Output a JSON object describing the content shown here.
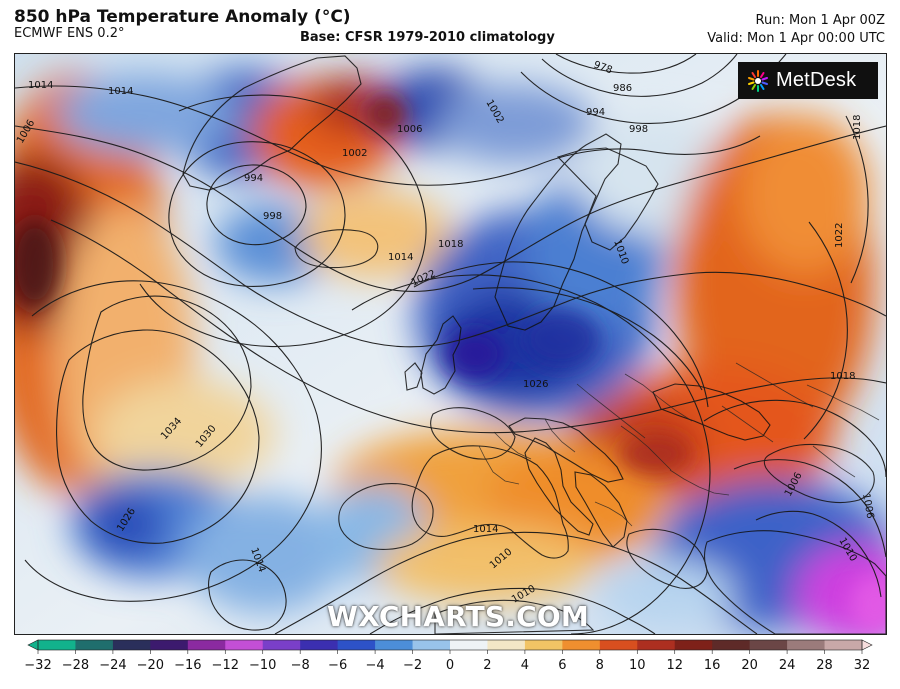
{
  "header": {
    "title": "850 hPa Temperature Anomaly (°C)",
    "model": "ECMWF ENS 0.2°",
    "base": "Base: CFSR 1979-2010 climatology",
    "run": "Run: Mon 1 Apr 00Z",
    "valid": "Valid: Mon 1 Apr 00:00 UTC"
  },
  "branding": {
    "logo_text": "MetDesk",
    "watermark": "WXCHARTS.COM"
  },
  "colorbar": {
    "ticks": [
      "−32",
      "−28",
      "−24",
      "−20",
      "−16",
      "−12",
      "−10",
      "−8",
      "−6",
      "−4",
      "−2",
      "0",
      "2",
      "4",
      "6",
      "8",
      "10",
      "12",
      "16",
      "20",
      "24",
      "28",
      "32"
    ],
    "colors": [
      "#12b28c",
      "#1f6e6d",
      "#2a2f5b",
      "#3c1a6e",
      "#8b2aa0",
      "#c34fd6",
      "#7a3fc9",
      "#3b2fb0",
      "#2d52c8",
      "#4c8ed8",
      "#98c3ea",
      "#eef3f6",
      "#f3e7c6",
      "#f1c465",
      "#ef8f2f",
      "#d84f1f",
      "#ad2f20",
      "#7e2119",
      "#5e2a28",
      "#6b4646",
      "#9b7b7b",
      "#c9a8a8",
      "#f2d6d6"
    ]
  },
  "map": {
    "isobar_labels": [
      "1014",
      "1014",
      "1006",
      "1006",
      "1002",
      "994",
      "998",
      "1002",
      "986",
      "978",
      "994",
      "998",
      "1018",
      "1014",
      "1018",
      "1022",
      "1026",
      "1034",
      "1030",
      "1026",
      "1014",
      "1014",
      "1010",
      "1010",
      "1006",
      "1006",
      "1010",
      "1022",
      "1018",
      "1010"
    ]
  }
}
